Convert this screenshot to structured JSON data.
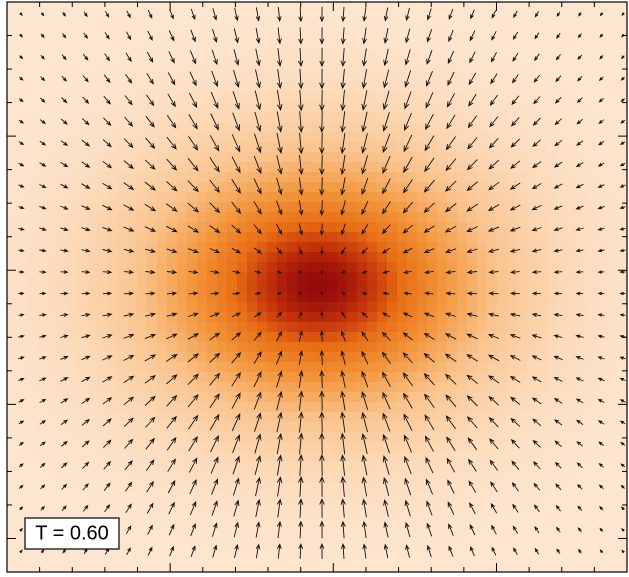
{
  "label": "T = 0.60"
}
